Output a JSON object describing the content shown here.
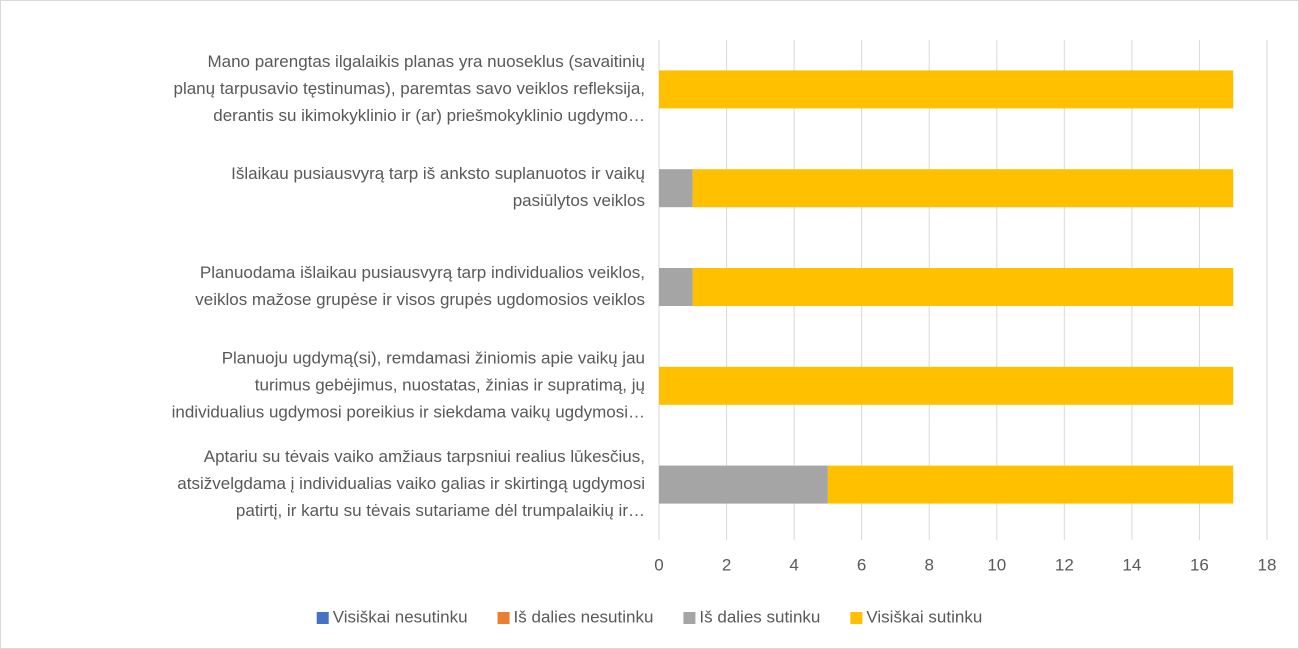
{
  "chart_data": {
    "type": "stacked_bar_horizontal",
    "categories": [
      [
        "Mano parengtas ilgalaikis planas yra nuoseklus (savaitinių",
        "planų tarpusavio tęstinumas), paremtas savo veiklos refleksija,",
        "derantis su ikimokyklinio ir (ar) priešmokyklinio ugdymo…"
      ],
      [
        "Išlaikau pusiausvyrą tarp iš anksto suplanuotos ir vaikų",
        "pasiūlytos veiklos"
      ],
      [
        "Planuodama išlaikau pusiausvyrą tarp individualios veiklos,",
        "veiklos mažose grupėse ir visos grupės ugdomosios veiklos"
      ],
      [
        "Planuoju ugdymą(si), remdamasi žiniomis apie vaikų jau",
        "turimus gebėjimus, nuostatas, žinias ir supratimą, jų",
        "individualius ugdymosi poreikius ir siekdama vaikų ugdymosi…"
      ],
      [
        "Aptariu su tėvais vaiko amžiaus tarpsniui realius lūkesčius,",
        "atsižvelgdama į individualias vaiko galias ir skirtingą ugdymosi",
        "patirtį, ir kartu su tėvais sutariame dėl trumpalaikių ir…"
      ]
    ],
    "series": [
      {
        "name": "Visiškai nesutinku",
        "color": "#4472c4",
        "values": [
          0,
          0,
          0,
          0,
          0
        ]
      },
      {
        "name": "Iš dalies nesutinku",
        "color": "#ed7d31",
        "values": [
          0,
          0,
          0,
          0,
          0
        ]
      },
      {
        "name": "Iš dalies sutinku",
        "color": "#a5a5a5",
        "values": [
          0,
          1,
          1,
          0,
          5
        ]
      },
      {
        "name": "Visiškai sutinku",
        "color": "#ffc000",
        "values": [
          17,
          16,
          16,
          17,
          12
        ]
      }
    ],
    "xlim": [
      0,
      18
    ],
    "xticks": [
      0,
      2,
      4,
      6,
      8,
      10,
      12,
      14,
      16,
      18
    ],
    "grid": true,
    "legend": "bottom"
  }
}
